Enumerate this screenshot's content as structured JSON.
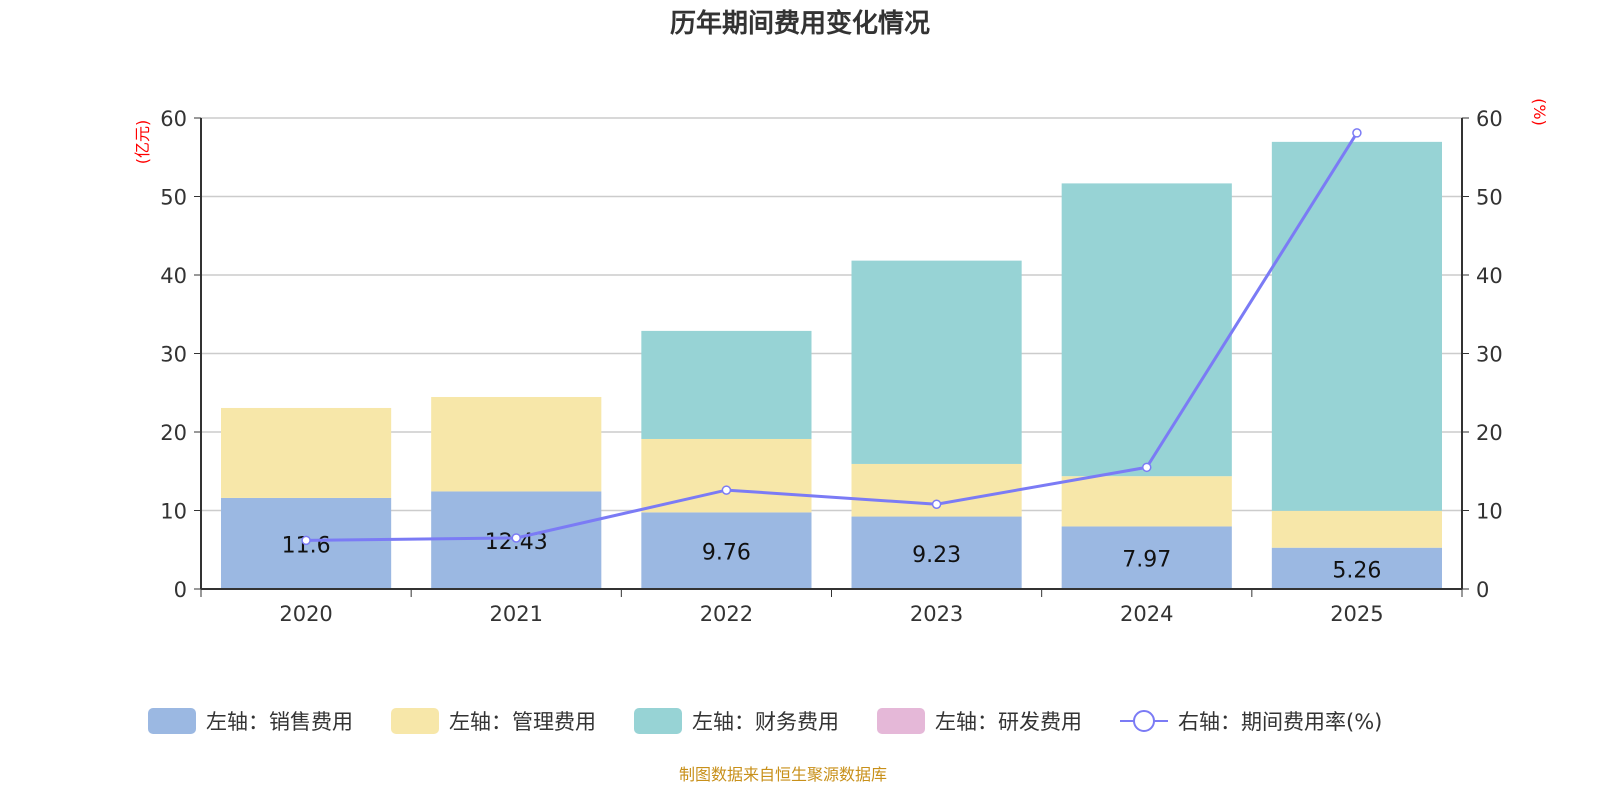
{
  "chart_data": {
    "type": "bar",
    "title": "历年期间费用变化情况",
    "categories": [
      "2020",
      "2021",
      "2022",
      "2023",
      "2024",
      "2025"
    ],
    "left_axis": {
      "label": "(亿元)",
      "ylim": [
        0,
        60
      ],
      "ticks": [
        0,
        10,
        20,
        30,
        40,
        50,
        60
      ]
    },
    "right_axis": {
      "label": "(%)",
      "ylim": [
        0,
        60
      ],
      "ticks": [
        0,
        10,
        20,
        30,
        40,
        50,
        60
      ]
    },
    "series": [
      {
        "name": "左轴：销售费用",
        "type": "bar",
        "stack": true,
        "color": "#9bb8e2",
        "values": [
          11.6,
          12.43,
          9.76,
          9.23,
          7.97,
          5.26
        ],
        "show_labels": true
      },
      {
        "name": "左轴：管理费用",
        "type": "bar",
        "stack": true,
        "color": "#f7e7a9",
        "values": [
          11.46,
          12.03,
          9.35,
          6.7,
          6.4,
          4.7
        ]
      },
      {
        "name": "左轴：财务费用",
        "type": "bar",
        "stack": true,
        "color": "#97d3d5",
        "values": [
          0,
          0,
          13.77,
          25.9,
          37.3,
          47.0
        ]
      },
      {
        "name": "左轴：研发费用",
        "type": "bar",
        "stack": true,
        "color": "#e5b8d8",
        "values": [
          0,
          0,
          0,
          0,
          0,
          0
        ]
      },
      {
        "name": "右轴：期间费用率(%)",
        "type": "line",
        "axis": "right",
        "color": "#7b7bf5",
        "values": [
          6.2,
          6.5,
          12.6,
          10.8,
          15.5,
          58.1
        ]
      }
    ],
    "grid": true,
    "legend_position": "bottom"
  },
  "footer": "制图数据来自恒生聚源数据库"
}
